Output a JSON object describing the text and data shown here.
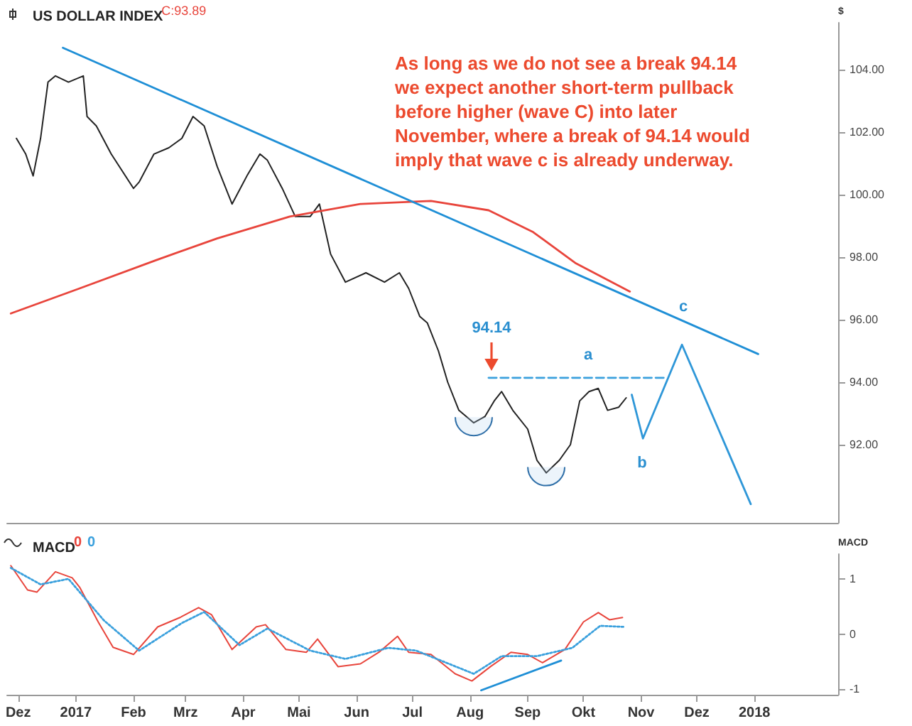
{
  "chart_data": [
    {
      "type": "line",
      "title": "US DOLLAR INDEX",
      "ylabel": "$",
      "marker": "none",
      "grid": false,
      "legend": false,
      "tick_labels": "y",
      "xlim": [
        "2016-11-25",
        "2018-02-15"
      ],
      "ylim": [
        89.5,
        105.5
      ],
      "yticks": [
        {
          "value": 92,
          "label": "92.00"
        },
        {
          "value": 94,
          "label": "94.00"
        },
        {
          "value": 96,
          "label": "96.00"
        },
        {
          "value": 98,
          "label": "98.00"
        },
        {
          "value": 100,
          "label": "100.00"
        },
        {
          "value": 102,
          "label": "102.00"
        },
        {
          "value": 104,
          "label": "104.00"
        }
      ],
      "series": [
        {
          "color": "#222222",
          "x": [
            "2016-11-30",
            "2016-12-05",
            "2016-12-09",
            "2016-12-13",
            "2016-12-17",
            "2016-12-21",
            "2016-12-28",
            "2017-01-05",
            "2017-01-07",
            "2017-01-12",
            "2017-01-20",
            "2017-02-01",
            "2017-02-04",
            "2017-02-12",
            "2017-02-20",
            "2017-02-27",
            "2017-03-05",
            "2017-03-11",
            "2017-03-18",
            "2017-03-26",
            "2017-04-03",
            "2017-04-10",
            "2017-04-14",
            "2017-04-22",
            "2017-04-29",
            "2017-05-07",
            "2017-05-12",
            "2017-05-18",
            "2017-05-26",
            "2017-06-06",
            "2017-06-16",
            "2017-06-24",
            "2017-06-29",
            "2017-07-05",
            "2017-07-09",
            "2017-07-15",
            "2017-07-20",
            "2017-07-26",
            "2017-08-03",
            "2017-08-09",
            "2017-08-14",
            "2017-08-18",
            "2017-08-24",
            "2017-09-01",
            "2017-09-06",
            "2017-09-11",
            "2017-09-18",
            "2017-09-24",
            "2017-09-29",
            "2017-10-04",
            "2017-10-09",
            "2017-10-14",
            "2017-10-20",
            "2017-10-24"
          ],
          "values": [
            101.8,
            101.3,
            100.6,
            101.8,
            103.6,
            103.8,
            103.6,
            103.8,
            102.5,
            102.2,
            101.3,
            100.2,
            100.4,
            101.3,
            101.5,
            101.8,
            102.5,
            102.2,
            100.9,
            99.7,
            100.6,
            101.3,
            101.1,
            100.2,
            99.3,
            99.3,
            99.7,
            98.1,
            97.2,
            97.5,
            97.2,
            97.5,
            97.0,
            96.1,
            95.9,
            95.0,
            94.0,
            93.1,
            92.7,
            92.9,
            93.4,
            93.7,
            93.1,
            92.5,
            91.5,
            91.1,
            91.5,
            92.0,
            93.4,
            93.7,
            93.8,
            93.1,
            93.2,
            93.5
          ]
        },
        {
          "color": "#e8453c",
          "x": [
            "2016-11-27",
            "2017-01-03",
            "2017-02-13",
            "2017-03-18",
            "2017-04-26",
            "2017-06-03",
            "2017-07-11",
            "2017-08-11",
            "2017-09-04",
            "2017-09-27",
            "2017-10-26"
          ],
          "values": [
            96.2,
            97.0,
            97.9,
            98.6,
            99.3,
            99.7,
            99.8,
            99.5,
            98.8,
            97.8,
            96.9
          ]
        },
        {
          "color": "#1f8fd6",
          "x": [
            "2016-12-25",
            "2018-01-03"
          ],
          "values": [
            104.7,
            94.9
          ]
        },
        {
          "color": "#3aa0dd",
          "line_style": "dashed",
          "x": [
            "2017-08-11",
            "2017-11-14"
          ],
          "values": [
            94.14,
            94.14
          ]
        },
        {
          "color": "#2f97d8",
          "x": [
            "2017-10-27",
            "2017-11-02",
            "2017-11-23",
            "2017-12-30"
          ],
          "values": [
            93.6,
            92.2,
            95.2,
            90.1
          ]
        }
      ],
      "annotations": [
        "C:93.89",
        "As long as we do not see a break 94.14 we expect another short-term pullback before higher (wave C) into later November, where a break of 94.14 would imply that wave c is already underway.",
        "94.14",
        "a",
        "b",
        "c"
      ]
    },
    {
      "type": "line",
      "title": "MACD",
      "ylabel": "MACD",
      "marker": "none",
      "grid": false,
      "legend": "top left",
      "xlim": [
        "2016-11-25",
        "2018-02-15"
      ],
      "ylim": [
        -1.1,
        1.45
      ],
      "yticks": [
        -1,
        0,
        1
      ],
      "xticks": [
        {
          "value": "2016-12-01",
          "label": "Dez"
        },
        {
          "value": "2017-01-01",
          "label": "2017"
        },
        {
          "value": "2017-02-01",
          "label": "Feb"
        },
        {
          "value": "2017-03-01",
          "label": "Mrz"
        },
        {
          "value": "2017-04-01",
          "label": "Apr"
        },
        {
          "value": "2017-05-01",
          "label": "Mai"
        },
        {
          "value": "2017-06-01",
          "label": "Jun"
        },
        {
          "value": "2017-07-01",
          "label": "Jul"
        },
        {
          "value": "2017-08-01",
          "label": "Aug"
        },
        {
          "value": "2017-09-01",
          "label": "Sep"
        },
        {
          "value": "2017-10-01",
          "label": "Okt"
        },
        {
          "value": "2017-11-01",
          "label": "Nov"
        },
        {
          "value": "2017-12-01",
          "label": "Dez"
        },
        {
          "value": "2018-01-01",
          "label": "2018"
        }
      ],
      "series": [
        {
          "name": "0",
          "color": "#e8453c",
          "x": [
            "2016-11-27",
            "2016-12-06",
            "2016-12-11",
            "2016-12-21",
            "2016-12-30",
            "2017-01-03",
            "2017-01-13",
            "2017-01-21",
            "2017-02-01",
            "2017-02-14",
            "2017-02-26",
            "2017-03-08",
            "2017-03-15",
            "2017-03-26",
            "2017-04-08",
            "2017-04-13",
            "2017-04-24",
            "2017-05-05",
            "2017-05-11",
            "2017-05-22",
            "2017-06-03",
            "2017-06-13",
            "2017-06-23",
            "2017-06-29",
            "2017-07-11",
            "2017-07-24",
            "2017-08-02",
            "2017-08-12",
            "2017-08-23",
            "2017-09-01",
            "2017-09-09",
            "2017-09-21",
            "2017-10-01",
            "2017-10-09",
            "2017-10-15",
            "2017-10-22"
          ],
          "values": [
            1.24,
            0.8,
            0.76,
            1.13,
            1.02,
            0.85,
            0.22,
            -0.24,
            -0.37,
            0.13,
            0.3,
            0.48,
            0.35,
            -0.28,
            0.13,
            0.17,
            -0.28,
            -0.33,
            -0.09,
            -0.59,
            -0.54,
            -0.33,
            -0.04,
            -0.33,
            -0.37,
            -0.72,
            -0.85,
            -0.59,
            -0.33,
            -0.37,
            -0.52,
            -0.28,
            0.22,
            0.39,
            0.26,
            0.3
          ]
        },
        {
          "name": "0",
          "color": "#3aa0dd",
          "line_style": "dotted",
          "x": [
            "2016-11-27",
            "2016-12-13",
            "2016-12-28",
            "2017-01-16",
            "2017-02-04",
            "2017-02-27",
            "2017-03-11",
            "2017-03-30",
            "2017-04-14",
            "2017-05-07",
            "2017-05-26",
            "2017-06-18",
            "2017-07-03",
            "2017-08-03",
            "2017-08-18",
            "2017-09-06",
            "2017-09-25",
            "2017-10-10",
            "2017-10-23"
          ],
          "values": [
            1.2,
            0.9,
            1.0,
            0.25,
            -0.3,
            0.2,
            0.4,
            -0.2,
            0.1,
            -0.3,
            -0.45,
            -0.25,
            -0.3,
            -0.72,
            -0.4,
            -0.4,
            -0.25,
            0.15,
            0.13
          ]
        },
        {
          "color": "#1f8fd6",
          "x": [
            "2017-08-07",
            "2017-09-19"
          ],
          "values": [
            -1.02,
            -0.48
          ]
        }
      ]
    }
  ]
}
